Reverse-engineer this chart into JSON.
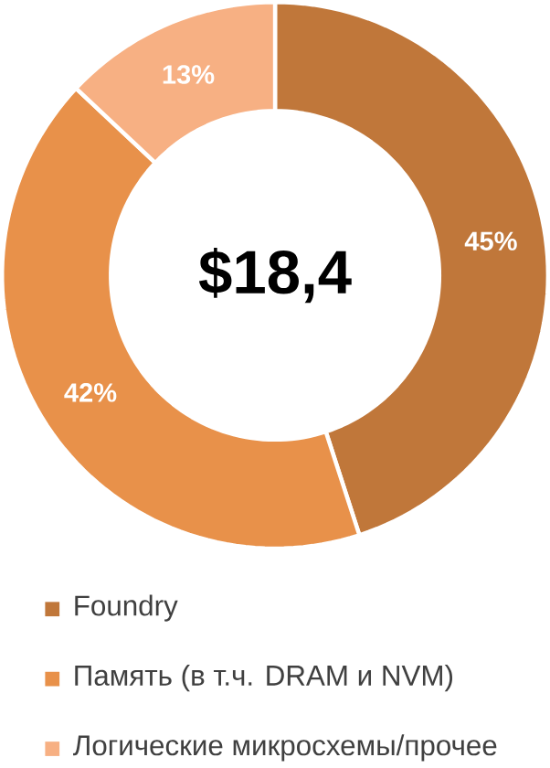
{
  "chart_data": {
    "type": "donut",
    "categories": [
      "Foundry",
      "Память (в т.ч. DRAM и NVM)",
      "Логические микросхемы/прочее"
    ],
    "values": [
      45,
      42,
      13
    ],
    "colors": [
      "#c0773a",
      "#e8914a",
      "#f7b083"
    ],
    "value_labels": [
      "45%",
      "42%",
      "13%"
    ],
    "annotations": [
      "$18,4"
    ],
    "legend": "bottom"
  }
}
